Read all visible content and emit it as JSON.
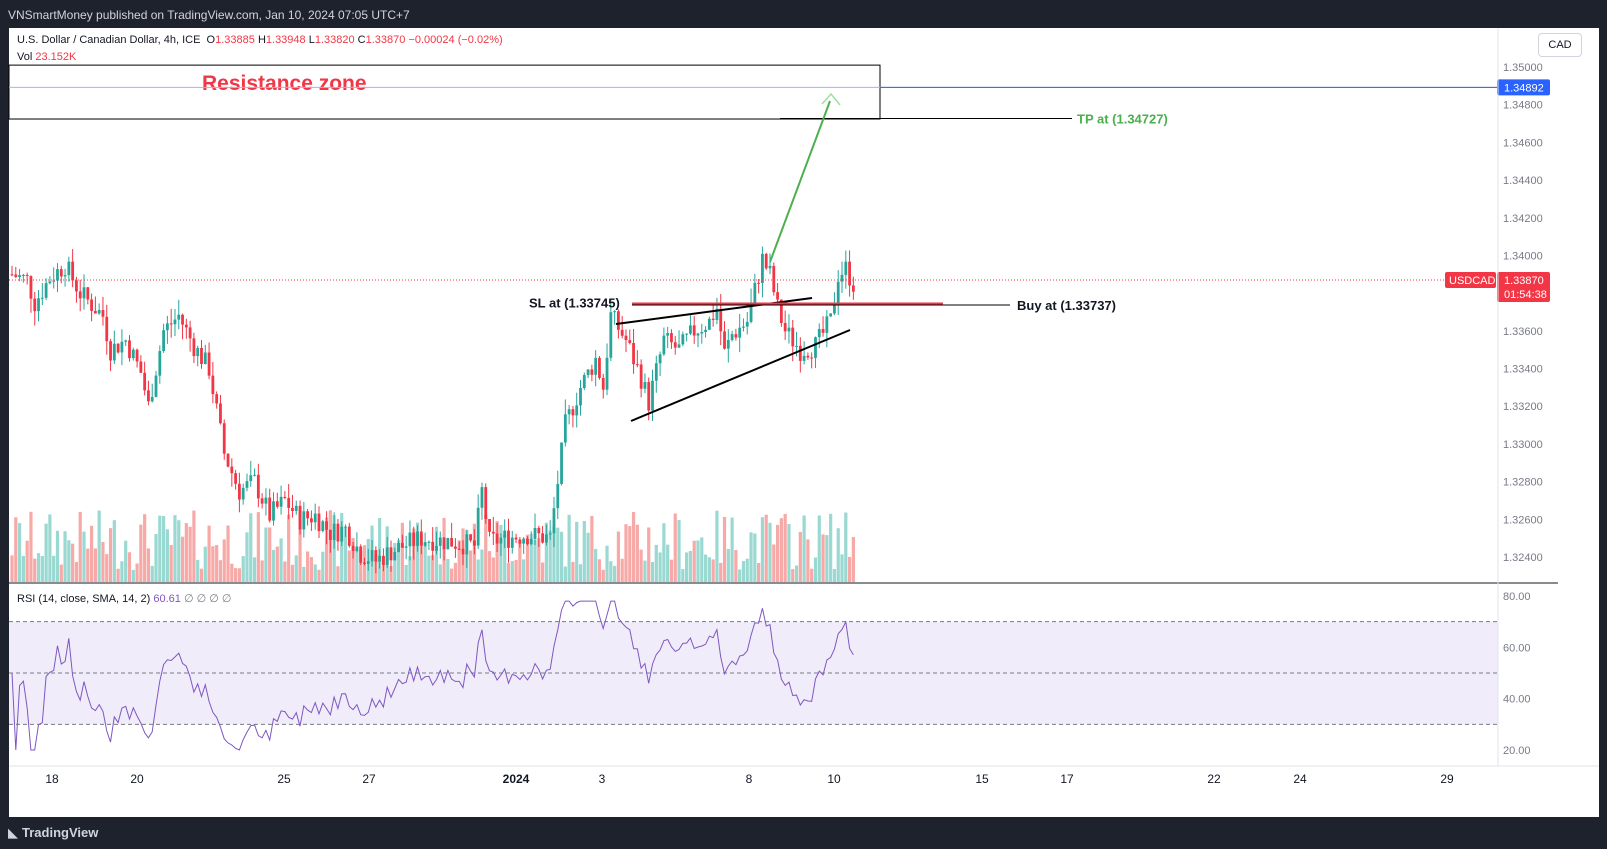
{
  "header": {
    "published": "VNSmartMoney published on TradingView.com, Jan 10, 2024 07:05 UTC+7"
  },
  "legend": {
    "symbol": "U.S. Dollar / Canadian Dollar, 4h, ICE",
    "o_label": "O",
    "o": "1.33885",
    "h_label": "H",
    "h": "1.33948",
    "l_label": "L",
    "l": "1.33820",
    "c_label": "C",
    "c": "1.33870",
    "change": "−0.00024 (−0.02%)",
    "vol_label": "Vol",
    "vol": "23.152K"
  },
  "currency_button": "CAD",
  "rsi_legend": {
    "label": "RSI (14, close, SMA, 14, 2)",
    "value": "60.61",
    "extra": "∅ ∅ ∅ ∅"
  },
  "footer": {
    "brand": "TradingView"
  },
  "colors": {
    "up": "#26a69a",
    "down": "#f23645",
    "up_vol": "#9ad8d2",
    "down_vol": "#f7a9a7",
    "rsi_line": "#7e57c2",
    "rsi_band": "#f1ecf9",
    "tp": "#4caf50",
    "accent": "#2962ff"
  },
  "chart_data": {
    "type": "candlestick",
    "symbol": "USDCAD",
    "interval": "4h",
    "last_price": "1.33870",
    "countdown": "01:54:38",
    "ylim": [
      1.323,
      1.3512
    ],
    "y_ticks": [
      "1.35000",
      "1.34800",
      "1.34600",
      "1.34400",
      "1.34200",
      "1.34000",
      "1.33600",
      "1.33400",
      "1.33200",
      "1.33000",
      "1.32800",
      "1.32600",
      "1.32400"
    ],
    "x_ticks": [
      "18",
      "20",
      "25",
      "27",
      "2024",
      "3",
      "8",
      "10",
      "15",
      "17",
      "22",
      "24",
      "29"
    ],
    "annotations": {
      "resistance_zone": {
        "label": "Resistance zone",
        "top": 1.3501,
        "bottom": 1.34724
      },
      "resistance_line": {
        "value": 1.34892,
        "label": "1.34892"
      },
      "tp": {
        "label": "TP at (1.34727)",
        "value": 1.34727
      },
      "sl": {
        "label": "SL at (1.33745)",
        "value": 1.33745
      },
      "buy": {
        "label": "Buy at (1.33737)",
        "value": 1.33737
      }
    },
    "rsi": {
      "ylim": [
        12,
        85
      ],
      "y_ticks": [
        "80.00",
        "60.00",
        "40.00",
        "20.00"
      ],
      "bands": [
        70,
        50,
        30
      ],
      "last": 60.61
    }
  }
}
